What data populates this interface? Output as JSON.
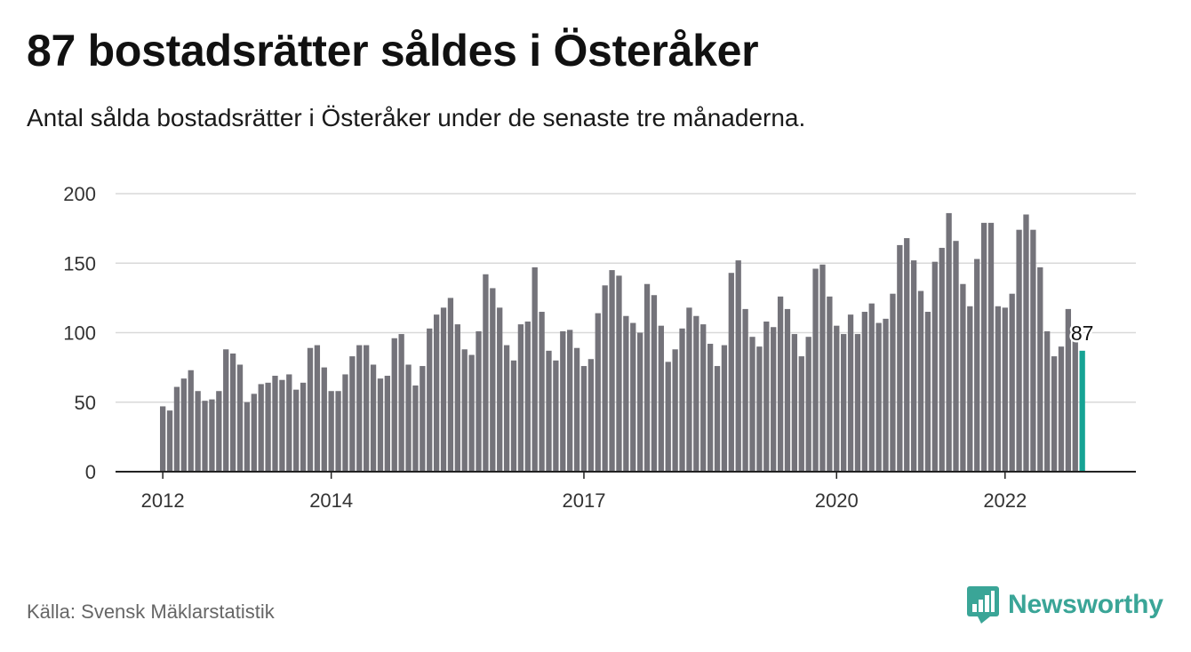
{
  "header": {
    "title": "87 bostadsrätter såldes i Österåker",
    "subtitle": "Antal sålda bostadsrätter i Österåker under de senaste tre månaderna."
  },
  "footer": {
    "source": "Källa: Svensk Mäklarstatistik",
    "brand": "Newsworthy"
  },
  "colors": {
    "bar": "#74737a",
    "highlight": "#16a394",
    "grid": "#d9d9d9",
    "axis": "#222222",
    "brand": "#3aa597"
  },
  "chart_data": {
    "type": "bar",
    "title": "",
    "xlabel": "",
    "ylabel": "",
    "ylim": [
      0,
      200
    ],
    "y_ticks": [
      0,
      50,
      100,
      150,
      200
    ],
    "x_tick_labels": [
      "2012",
      "2014",
      "2017",
      "2020",
      "2022"
    ],
    "x_tick_bar_index": [
      0,
      24,
      60,
      96,
      120
    ],
    "grid": true,
    "highlight_label": "87",
    "values": [
      47,
      44,
      61,
      67,
      73,
      58,
      51,
      52,
      58,
      88,
      85,
      77,
      50,
      56,
      63,
      64,
      69,
      66,
      70,
      59,
      64,
      89,
      91,
      75,
      58,
      58,
      70,
      83,
      91,
      91,
      77,
      67,
      69,
      96,
      99,
      77,
      62,
      76,
      103,
      113,
      118,
      125,
      106,
      88,
      84,
      101,
      142,
      132,
      118,
      91,
      80,
      106,
      108,
      147,
      115,
      87,
      80,
      101,
      102,
      89,
      76,
      81,
      114,
      134,
      145,
      141,
      112,
      107,
      100,
      135,
      127,
      105,
      79,
      88,
      103,
      118,
      112,
      106,
      92,
      76,
      91,
      143,
      152,
      117,
      97,
      90,
      108,
      104,
      126,
      117,
      99,
      83,
      97,
      146,
      149,
      126,
      105,
      99,
      113,
      99,
      115,
      121,
      107,
      110,
      128,
      163,
      168,
      152,
      130,
      115,
      151,
      161,
      186,
      166,
      135,
      119,
      153,
      179,
      179,
      119,
      118,
      128,
      174,
      185,
      174,
      147,
      101,
      83,
      90,
      117,
      97,
      87
    ]
  }
}
